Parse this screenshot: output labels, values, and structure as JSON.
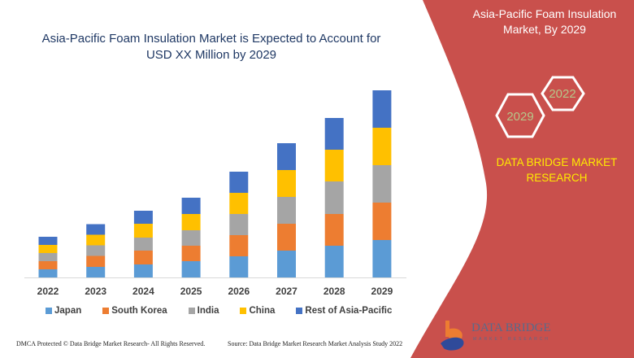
{
  "header": {
    "title": "Asia-Pacific Foam Insulation Market is Expected to Account for USD XX Million by 2029"
  },
  "panel": {
    "title": "Asia-Pacific Foam Insulation Market, By 2029",
    "hex_a": "2022",
    "hex_b": "2029",
    "brand": "DATA BRIDGE MARKET RESEARCH",
    "logo_text": "DATA BRIDGE",
    "logo_sub": "MARKET RESEARCH",
    "color": "#c9504c",
    "brand_color": "#ffeb00"
  },
  "footer": {
    "left": "DMCA Protected © Data Bridge Market Research- All Rights Reserved.",
    "right": "Source: Data Bridge Market Research Market Analysis Study 2022"
  },
  "chart_data": {
    "type": "bar",
    "stacked": true,
    "title": "Asia-Pacific Foam Insulation Market is Expected to Account for USD XX Million by 2029",
    "categories": [
      "2022",
      "2023",
      "2024",
      "2025",
      "2026",
      "2027",
      "2028",
      "2029"
    ],
    "series": [
      {
        "name": "Japan",
        "color": "#5b9bd5",
        "values": [
          10,
          13,
          16,
          20,
          26,
          33,
          39,
          46
        ]
      },
      {
        "name": "South Korea",
        "color": "#ed7d31",
        "values": [
          10,
          13.5,
          17,
          19,
          26,
          33,
          39,
          46
        ]
      },
      {
        "name": "India",
        "color": "#a5a5a5",
        "values": [
          10,
          13,
          16,
          19,
          26,
          33,
          40,
          46
        ]
      },
      {
        "name": "China",
        "color": "#ffc000",
        "values": [
          10,
          13,
          17,
          20,
          26,
          33,
          39,
          46
        ]
      },
      {
        "name": "Rest of Asia-Pacific",
        "color": "#4472c4",
        "values": [
          10,
          13,
          16,
          20,
          26,
          33,
          39,
          46
        ]
      }
    ],
    "yaxis_visible": false,
    "grid": false,
    "legend": "bottom"
  }
}
